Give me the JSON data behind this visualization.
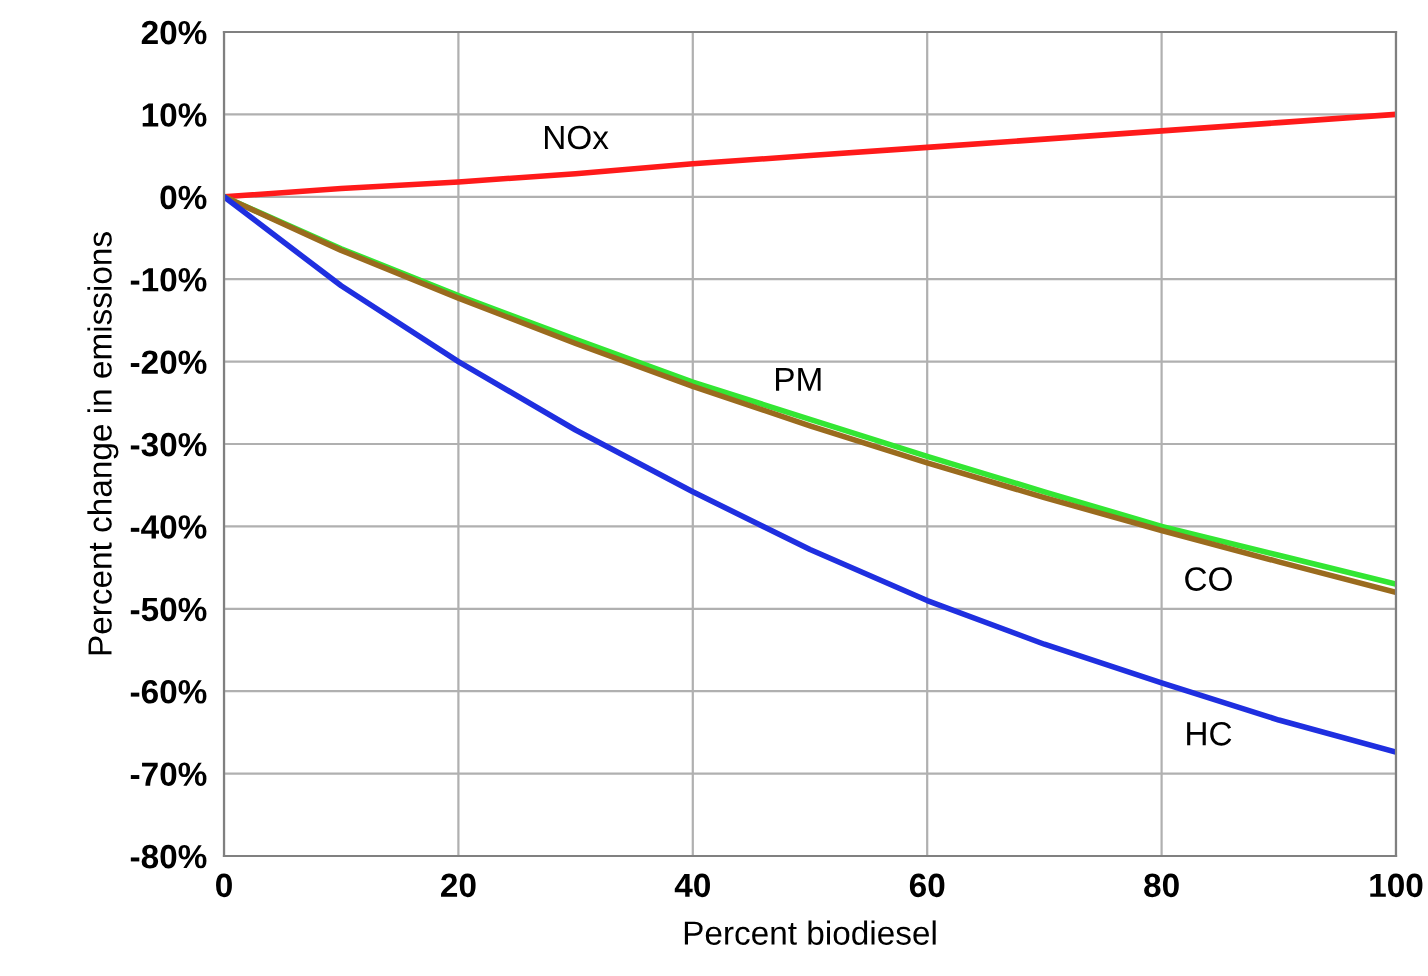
{
  "chart_data": {
    "type": "line",
    "xlabel": "Percent biodiesel",
    "ylabel": "Percent change in emissions",
    "x": [
      0,
      10,
      20,
      30,
      40,
      50,
      60,
      70,
      80,
      90,
      100
    ],
    "series": [
      {
        "name": "NOx",
        "color": "#ff1a1a",
        "values": [
          0,
          1,
          1.8,
          2.8,
          4,
          5,
          6,
          7,
          8,
          9,
          10
        ]
      },
      {
        "name": "PM",
        "color": "#33e633",
        "values": [
          0,
          -6.3,
          -12,
          -17.3,
          -22.5,
          -27,
          -31.5,
          -35.8,
          -40,
          -43.5,
          -47
        ]
      },
      {
        "name": "CO",
        "color": "#9a6b1e",
        "values": [
          0,
          -6.5,
          -12.3,
          -17.8,
          -23,
          -27.8,
          -32.3,
          -36.5,
          -40.5,
          -44.3,
          -48
        ]
      },
      {
        "name": "HC",
        "color": "#1f2fe0",
        "values": [
          0,
          -10.8,
          -20,
          -28.3,
          -35.8,
          -42.8,
          -49,
          -54.3,
          -59,
          -63.5,
          -67.4
        ]
      }
    ],
    "xlim": [
      0,
      100
    ],
    "ylim": [
      -80,
      20
    ],
    "xticks": [
      0,
      20,
      40,
      60,
      80,
      100
    ],
    "yticks": [
      {
        "value": 20,
        "label": "20%"
      },
      {
        "value": 10,
        "label": "10%"
      },
      {
        "value": 0,
        "label": "0%"
      },
      {
        "value": -10,
        "label": "-10%"
      },
      {
        "value": -20,
        "label": "-20%"
      },
      {
        "value": -30,
        "label": "-30%"
      },
      {
        "value": -40,
        "label": "-40%"
      },
      {
        "value": -50,
        "label": "-50%"
      },
      {
        "value": -60,
        "label": "-60%"
      },
      {
        "value": -70,
        "label": "-70%"
      },
      {
        "value": -80,
        "label": "-80%"
      }
    ],
    "grid": true,
    "line_style": "solid",
    "marker": "none"
  }
}
